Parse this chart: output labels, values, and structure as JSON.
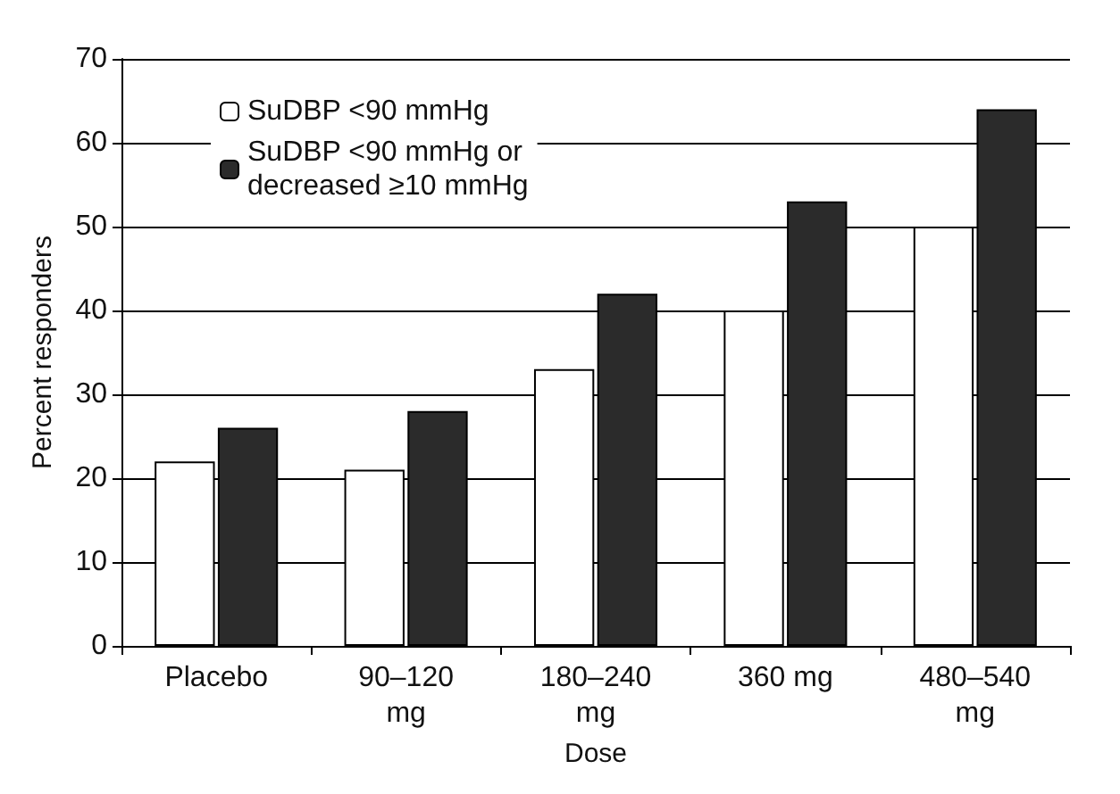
{
  "chart_data": {
    "type": "bar",
    "xlabel": "Dose",
    "ylabel": "Percent responders",
    "categories": [
      "Placebo",
      "90–120\nmg",
      "180–240\nmg",
      "360 mg",
      "480–540\nmg"
    ],
    "series": [
      {
        "name": "SuDBP <90 mmHg",
        "color": "#ffffff",
        "values": [
          22,
          21,
          33,
          40,
          50
        ]
      },
      {
        "name": "SuDBP <90 mmHg or\ndecreased ≥10 mmHg",
        "color": "#2b2b2b",
        "values": [
          26,
          28,
          42,
          53,
          64
        ]
      }
    ],
    "ylim": [
      0,
      70
    ],
    "yticks": [
      0,
      10,
      20,
      30,
      40,
      50,
      60,
      70
    ],
    "grid": "y",
    "legend": "top left"
  }
}
